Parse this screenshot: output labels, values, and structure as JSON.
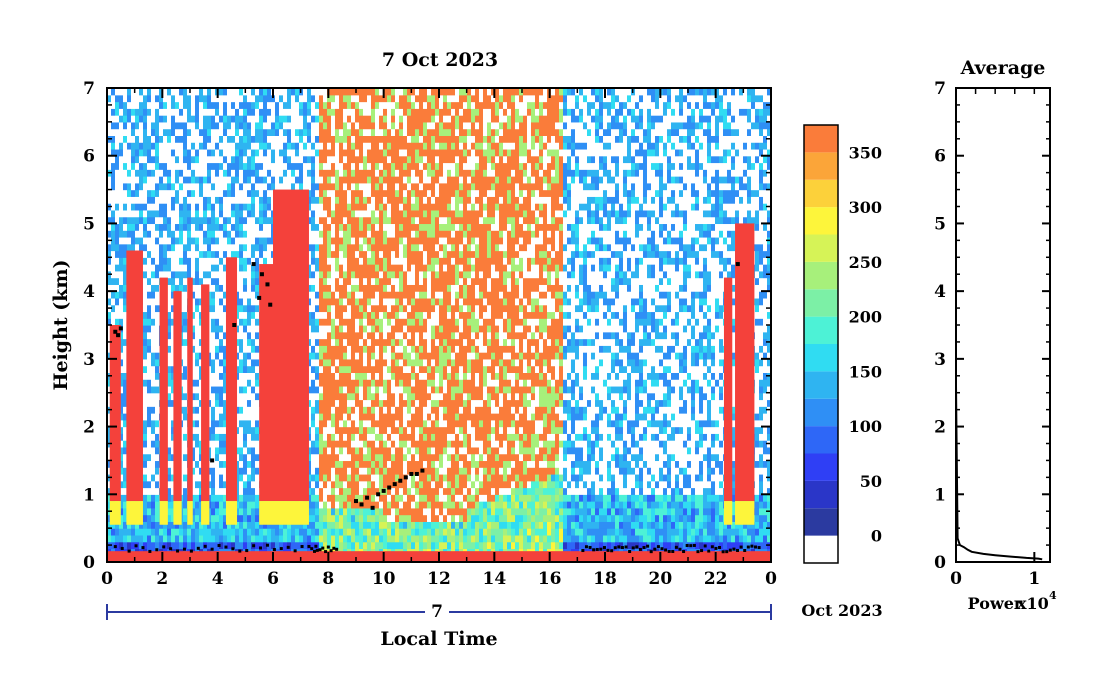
{
  "chart_data": [
    {
      "type": "heatmap",
      "title": "7 Oct 2023",
      "xlabel": "Local Time",
      "ylabel": "Height (km)",
      "xlim": [
        0,
        24
      ],
      "ylim": [
        0,
        7
      ],
      "x_ticks": [
        "0",
        "2",
        "4",
        "6",
        "8",
        "10",
        "12",
        "14",
        "16",
        "18",
        "20",
        "22",
        "0"
      ],
      "x_tick_values": [
        0,
        2,
        4,
        6,
        8,
        10,
        12,
        14,
        16,
        18,
        20,
        22,
        24
      ],
      "y_ticks": [
        "0",
        "1",
        "2",
        "3",
        "4",
        "5",
        "6",
        "7"
      ],
      "y_tick_values": [
        0,
        1,
        2,
        3,
        4,
        5,
        6,
        7
      ],
      "date_axis": {
        "day_label": "7",
        "month_label": "Oct 2023"
      },
      "colorbar": {
        "range": [
          -25,
          375
        ],
        "levels": [
          -25,
          0,
          25,
          50,
          75,
          100,
          125,
          150,
          175,
          200,
          225,
          250,
          275,
          300,
          325,
          350,
          375
        ],
        "colors": [
          "#ffffff",
          "#2b3aa0",
          "#2a36c8",
          "#2f3ff5",
          "#2e67f7",
          "#2f8ff5",
          "#2fb4f1",
          "#30dcf2",
          "#4df2d6",
          "#7cf0a6",
          "#a7f07b",
          "#d6f357",
          "#fdf53b",
          "#fcd13a",
          "#fba539",
          "#fa7c3a",
          "#f4413b"
        ],
        "tick_labels": [
          "0",
          "50",
          "100",
          "150",
          "200",
          "250",
          "300",
          "350"
        ],
        "tick_values": [
          0,
          50,
          100,
          150,
          200,
          250,
          300,
          350
        ]
      },
      "intense_columns": [
        {
          "start": 0.1,
          "end": 0.5,
          "top": 3.5
        },
        {
          "start": 0.7,
          "end": 1.3,
          "top": 4.6
        },
        {
          "start": 1.9,
          "end": 2.2,
          "top": 4.2
        },
        {
          "start": 2.4,
          "end": 2.7,
          "top": 4.0
        },
        {
          "start": 2.9,
          "end": 3.1,
          "top": 4.2
        },
        {
          "start": 3.4,
          "end": 3.7,
          "top": 4.1
        },
        {
          "start": 4.3,
          "end": 4.7,
          "top": 4.5
        },
        {
          "start": 5.5,
          "end": 6.0,
          "top": 4.4
        },
        {
          "start": 6.0,
          "end": 7.3,
          "top": 5.5
        },
        {
          "start": 22.3,
          "end": 22.6,
          "top": 4.2
        },
        {
          "start": 22.7,
          "end": 23.4,
          "top": 5.0
        }
      ],
      "intense_region": {
        "start": 7.7,
        "end": 16.5,
        "top": 7.0,
        "bottom_left": 0.8,
        "bottom_mid": 0.6,
        "bottom_right": 1.3
      },
      "cloud_base_markers": [
        {
          "x": 0.3,
          "y": 3.4
        },
        {
          "x": 0.4,
          "y": 3.35
        },
        {
          "x": 0.5,
          "y": 3.45
        },
        {
          "x": 5.3,
          "y": 4.4
        },
        {
          "x": 5.6,
          "y": 4.25
        },
        {
          "x": 5.8,
          "y": 4.1
        },
        {
          "x": 5.9,
          "y": 3.8
        },
        {
          "x": 5.5,
          "y": 3.9
        },
        {
          "x": 4.6,
          "y": 3.5
        },
        {
          "x": 3.8,
          "y": 1.5
        },
        {
          "x": 9.0,
          "y": 0.9
        },
        {
          "x": 9.2,
          "y": 0.85
        },
        {
          "x": 9.4,
          "y": 0.95
        },
        {
          "x": 9.6,
          "y": 0.8
        },
        {
          "x": 9.8,
          "y": 1.0
        },
        {
          "x": 10.0,
          "y": 1.05
        },
        {
          "x": 10.2,
          "y": 1.1
        },
        {
          "x": 10.4,
          "y": 1.15
        },
        {
          "x": 10.6,
          "y": 1.2
        },
        {
          "x": 10.8,
          "y": 1.25
        },
        {
          "x": 11.0,
          "y": 1.3
        },
        {
          "x": 11.2,
          "y": 1.3
        },
        {
          "x": 11.4,
          "y": 1.35
        },
        {
          "x": 22.8,
          "y": 4.4
        }
      ],
      "surface_line": {
        "start": 0,
        "end": 24,
        "height": 0.08
      }
    },
    {
      "type": "line",
      "title": "Average",
      "xlabel": "Power",
      "x_multiplier": "x10",
      "x_exponent": "4",
      "xlim": [
        0,
        1.2
      ],
      "ylim": [
        0,
        7
      ],
      "x_ticks": [
        "0",
        "1"
      ],
      "x_tick_values": [
        0,
        1
      ],
      "y_ticks": [
        "0",
        "1",
        "2",
        "3",
        "4",
        "5",
        "6",
        "7"
      ],
      "y_tick_values": [
        0,
        1,
        2,
        3,
        4,
        5,
        6,
        7
      ],
      "series": [
        {
          "x": [
            0.0,
            0.02,
            0.05,
            0.1,
            0.15,
            0.2,
            0.35,
            0.5,
            0.7,
            0.9,
            1.05,
            1.1
          ],
          "y": [
            2.6,
            0.35,
            0.25,
            0.22,
            0.18,
            0.15,
            0.12,
            0.1,
            0.08,
            0.06,
            0.05,
            0.04
          ]
        }
      ]
    }
  ]
}
